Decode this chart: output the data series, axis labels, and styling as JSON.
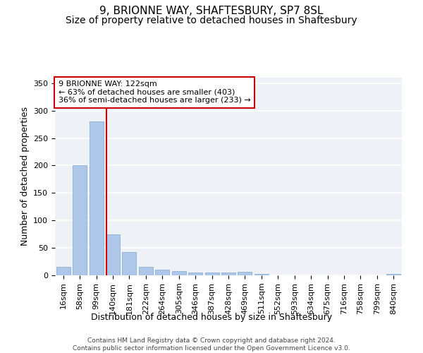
{
  "title1": "9, BRIONNE WAY, SHAFTESBURY, SP7 8SL",
  "title2": "Size of property relative to detached houses in Shaftesbury",
  "xlabel": "Distribution of detached houses by size in Shaftesbury",
  "ylabel": "Number of detached properties",
  "footer": "Contains HM Land Registry data © Crown copyright and database right 2024.\nContains public sector information licensed under the Open Government Licence v3.0.",
  "bin_labels": [
    "16sqm",
    "58sqm",
    "99sqm",
    "140sqm",
    "181sqm",
    "222sqm",
    "264sqm",
    "305sqm",
    "346sqm",
    "387sqm",
    "428sqm",
    "469sqm",
    "511sqm",
    "552sqm",
    "593sqm",
    "634sqm",
    "675sqm",
    "716sqm",
    "758sqm",
    "799sqm",
    "840sqm"
  ],
  "bar_values": [
    16,
    200,
    280,
    75,
    42,
    16,
    10,
    8,
    5,
    5,
    5,
    6,
    2,
    0,
    0,
    0,
    0,
    0,
    0,
    0,
    3
  ],
  "bar_color": "#aec6e8",
  "bar_edge_color": "#7aaad0",
  "property_label": "9 BRIONNE WAY: 122sqm",
  "annotation_line1": "← 63% of detached houses are smaller (403)",
  "annotation_line2": "36% of semi-detached houses are larger (233) →",
  "vline_color": "#cc0000",
  "vline_x_index": 2.62,
  "annotation_box_edge": "#cc0000",
  "ylim": [
    0,
    360
  ],
  "yticks": [
    0,
    50,
    100,
    150,
    200,
    250,
    300,
    350
  ],
  "bg_color": "#eef2f7",
  "grid_color": "#ffffff",
  "title1_fontsize": 11,
  "title2_fontsize": 10,
  "xlabel_fontsize": 9,
  "ylabel_fontsize": 9,
  "tick_fontsize": 8,
  "annot_fontsize": 8
}
